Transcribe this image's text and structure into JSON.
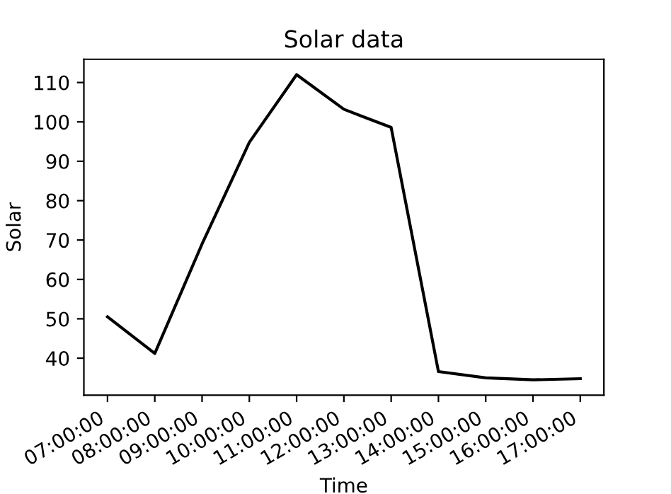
{
  "chart_data": {
    "type": "line",
    "title": "Solar data",
    "xlabel": "Time",
    "ylabel": "Solar",
    "x": [
      7,
      8,
      9,
      10,
      11,
      12,
      13,
      14,
      15,
      16,
      17
    ],
    "series": [
      {
        "color": "#000000",
        "values": [
          50.5,
          41.2,
          69,
          94.8,
          112,
          103.2,
          98.6,
          36.6,
          35,
          34.5,
          34.8
        ]
      }
    ],
    "xlim": [
      6.5,
      17.5
    ],
    "xticks": [
      {
        "value": 7,
        "label": "07:00:00"
      },
      {
        "value": 8,
        "label": "08:00:00"
      },
      {
        "value": 9,
        "label": "09:00:00"
      },
      {
        "value": 10,
        "label": "10:00:00"
      },
      {
        "value": 11,
        "label": "11:00:00"
      },
      {
        "value": 12,
        "label": "12:00:00"
      },
      {
        "value": 13,
        "label": "13:00:00"
      },
      {
        "value": 14,
        "label": "14:00:00"
      },
      {
        "value": 15,
        "label": "15:00:00"
      },
      {
        "value": 16,
        "label": "16:00:00"
      },
      {
        "value": 17,
        "label": "17:00:00"
      }
    ],
    "ylim": [
      30.6,
      115.9
    ],
    "yticks": [
      40,
      50,
      60,
      70,
      80,
      90,
      100,
      110
    ],
    "grid": false,
    "legend": false,
    "marker": "none",
    "line_style": "solid"
  }
}
